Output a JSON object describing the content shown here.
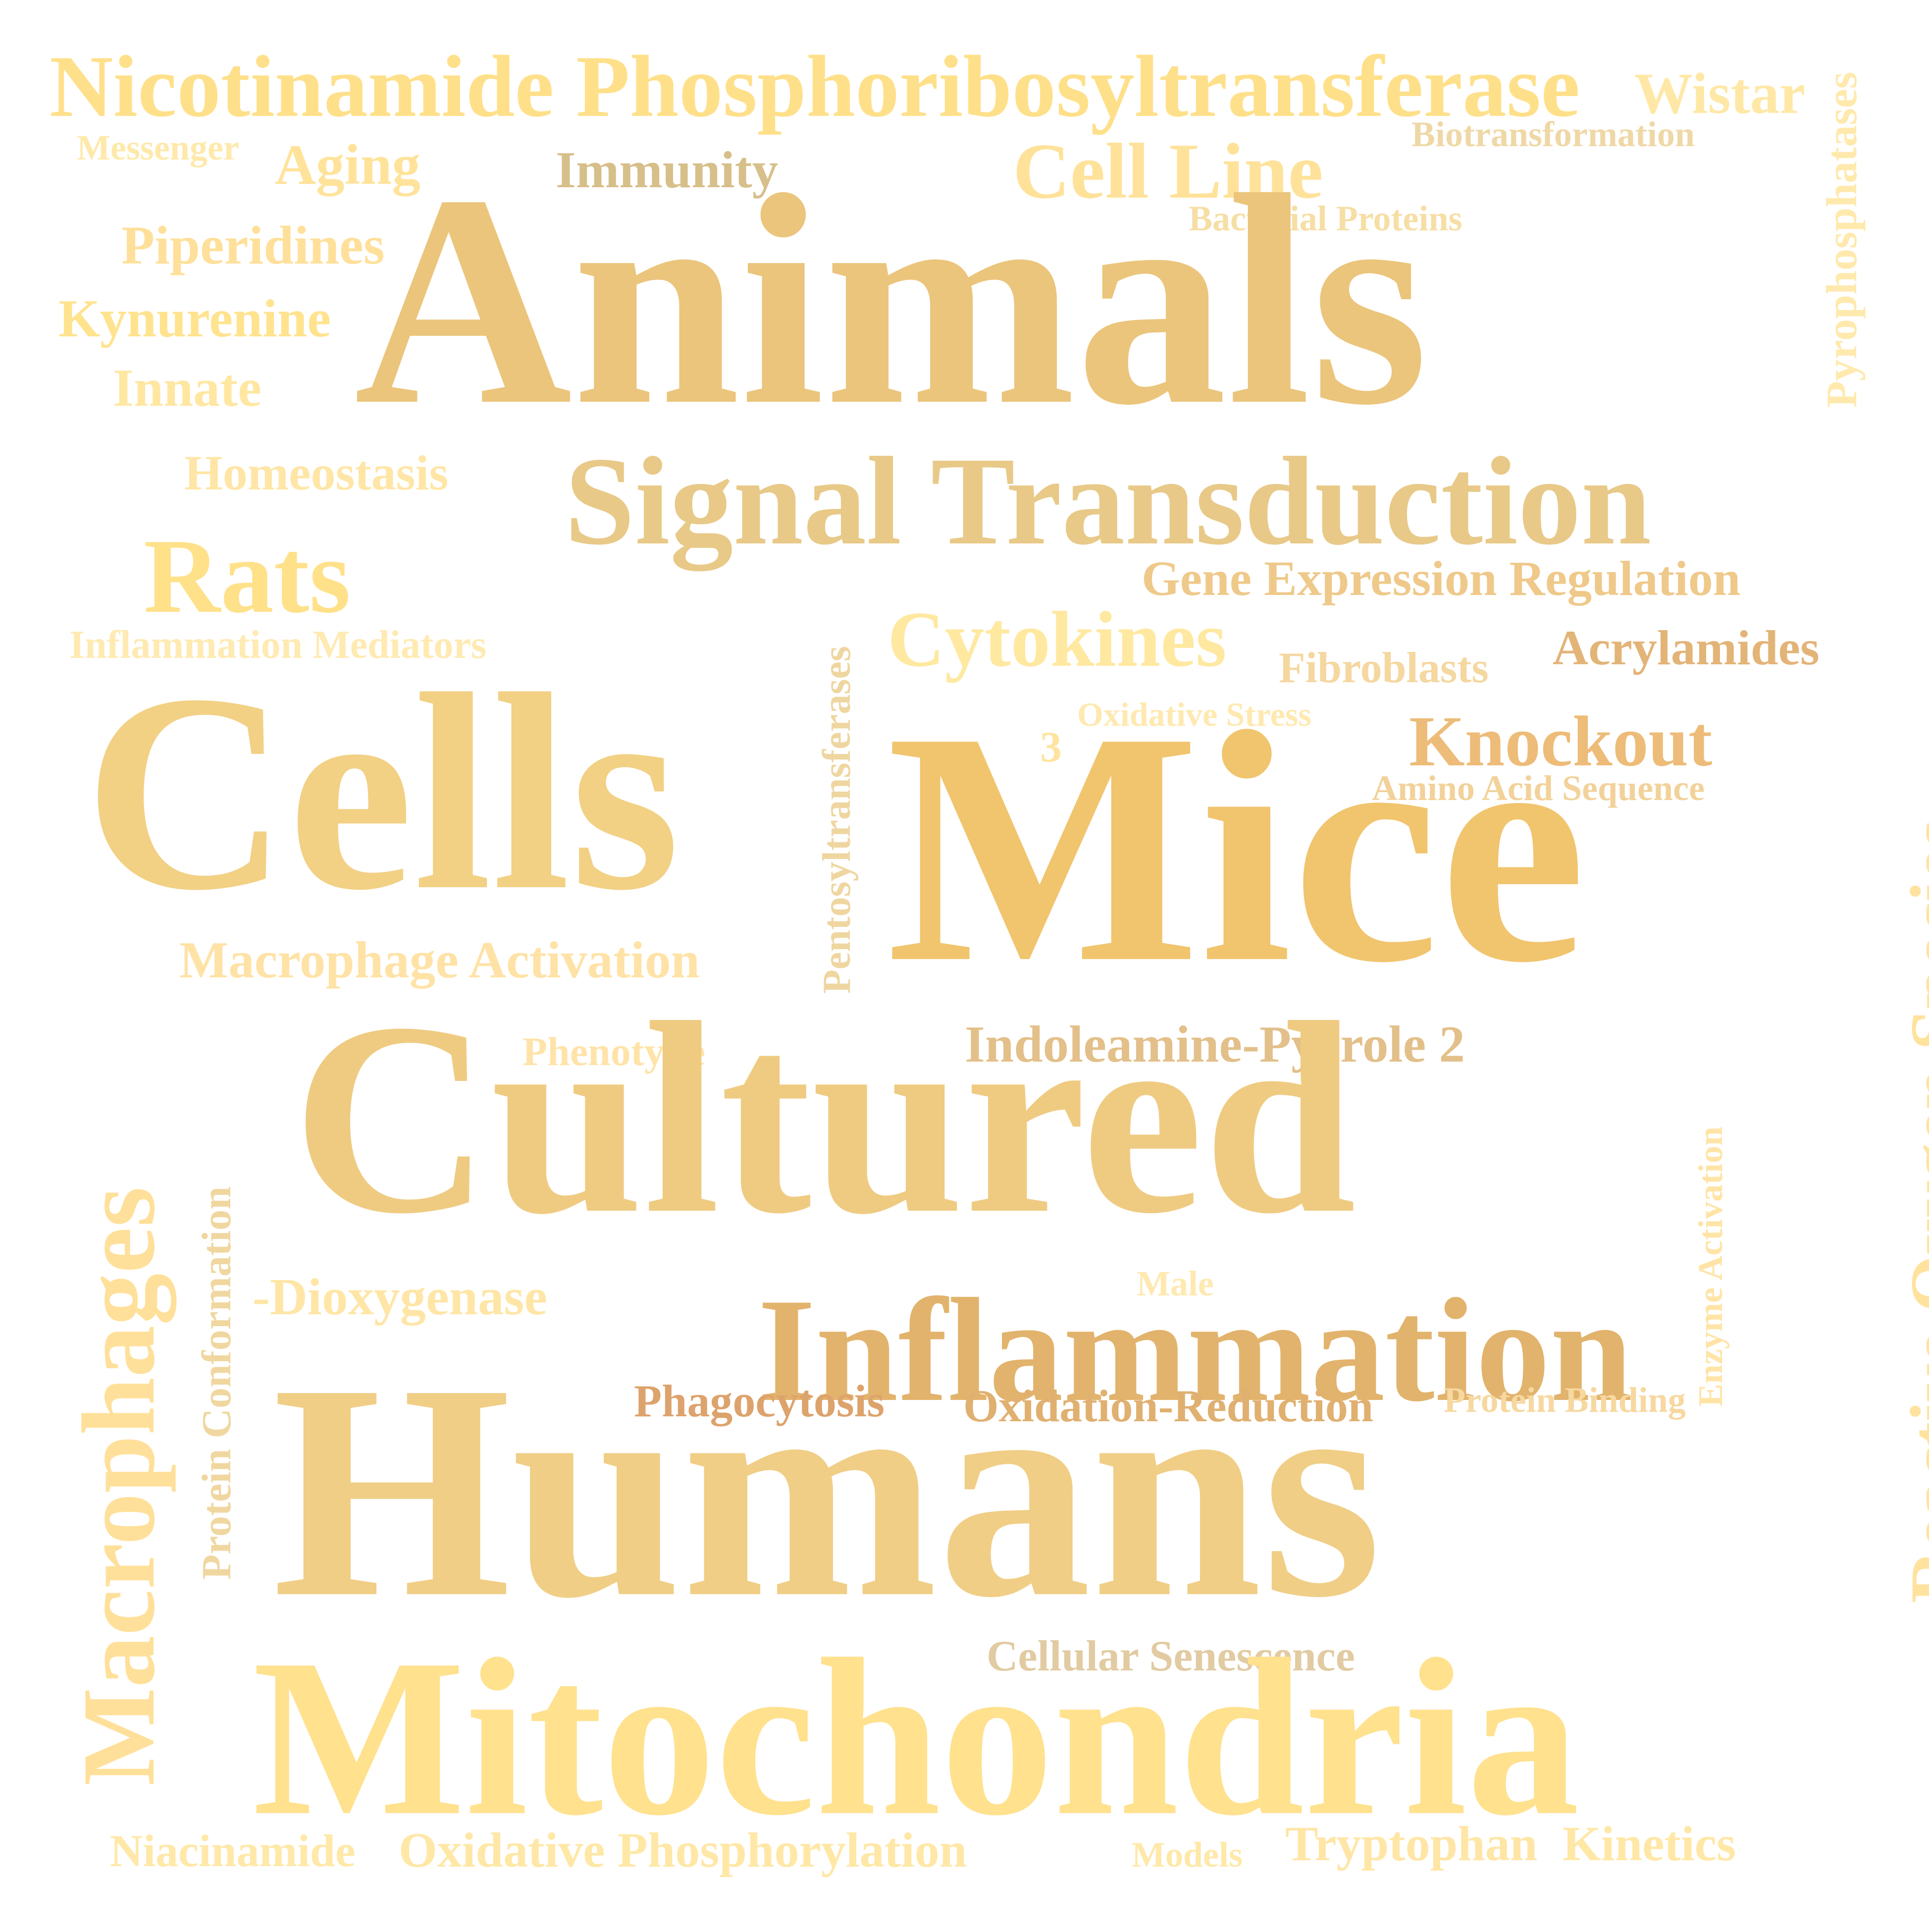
{
  "word_cloud": {
    "words": [
      {
        "key": "nicotinamide",
        "text": "Nicotinamide Phosphoribosyltransferase",
        "color": "#FFE08A"
      },
      {
        "key": "wistar",
        "text": "Wistar",
        "color": "#FFE8A6"
      },
      {
        "key": "pyrophosphatases",
        "text": "Pyrophosphatases",
        "color": "#FFE9AC"
      },
      {
        "key": "messenger",
        "text": "Messenger",
        "color": "#FFE9AA"
      },
      {
        "key": "aging",
        "text": "Aging",
        "color": "#FFE39A"
      },
      {
        "key": "immunity",
        "text": "Immunity",
        "color": "#D7BF8A"
      },
      {
        "key": "cell_line",
        "text": "Cell Line",
        "color": "#FFE29A"
      },
      {
        "key": "biotransformation",
        "text": "Biotransformation",
        "color": "#EFD8A6"
      },
      {
        "key": "bacterial_proteins",
        "text": "Bacterial Proteins",
        "color": "#F6DEA5"
      },
      {
        "key": "animals",
        "text": "Animals",
        "color": "#EBC57C"
      },
      {
        "key": "piperidines",
        "text": "Piperidines",
        "color": "#FFE09A"
      },
      {
        "key": "kynurenine",
        "text": "Kynurenine",
        "color": "#FFE38E"
      },
      {
        "key": "innate",
        "text": "Innate",
        "color": "#FFE7A2"
      },
      {
        "key": "homeostasis",
        "text": "Homeostasis",
        "color": "#FFE6A6"
      },
      {
        "key": "signal_transduction",
        "text": "Signal Transduction",
        "color": "#E8C988"
      },
      {
        "key": "rats",
        "text": "Rats",
        "color": "#FFE18A"
      },
      {
        "key": "gene_expression",
        "text": "Gene Expression Regulation",
        "color": "#EFC98A"
      },
      {
        "key": "inflammation_mediators",
        "text": "Inflammation Mediators",
        "color": "#FFEAB2"
      },
      {
        "key": "pentosyltransferases",
        "text": "Pentosyltransferases",
        "color": "#EFD6A0"
      },
      {
        "key": "cytokines",
        "text": "Cytokines",
        "color": "#FFE8A0"
      },
      {
        "key": "acrylamides",
        "text": "Acrylamides",
        "color": "#E3B478"
      },
      {
        "key": "fibroblasts",
        "text": "Fibroblasts",
        "color": "#F5D7A0"
      },
      {
        "key": "oxidative_stress",
        "text": "Oxidative Stress",
        "color": "#FFE9B0"
      },
      {
        "key": "knockout",
        "text": "Knockout",
        "color": "#EDBC78"
      },
      {
        "key": "three",
        "text": "3",
        "color": "#FFE4A0"
      },
      {
        "key": "amino_acid_sequence",
        "text": "Amino Acid Sequence",
        "color": "#F2D29A"
      },
      {
        "key": "cells",
        "text": "Cells",
        "color": "#F2D084"
      },
      {
        "key": "mice",
        "text": "Mice",
        "color": "#F1C46E"
      },
      {
        "key": "reactive_oxygen_species",
        "text": "Reactive Oxygen Species",
        "color": "#FFE29E"
      },
      {
        "key": "macrophage_activation",
        "text": "Macrophage Activation",
        "color": "#FFE2A6"
      },
      {
        "key": "macrophages",
        "text": "Macrophages",
        "color": "#FFE09A"
      },
      {
        "key": "phenotype",
        "text": "Phenotype",
        "color": "#FFE3A8"
      },
      {
        "key": "indoleamine",
        "text": "Indoleamine-Pyrrole 2",
        "color": "#E3C08A"
      },
      {
        "key": "cultured",
        "text": "Cultured",
        "color": "#EFCB82"
      },
      {
        "key": "protein_conformation",
        "text": "Protein Conformation",
        "color": "#F0D7A0"
      },
      {
        "key": "enzyme_activation",
        "text": "Enzyme Activation",
        "color": "#FFE4A6"
      },
      {
        "key": "dioxygenase",
        "text": "-Dioxygenase",
        "color": "#FFE6A6"
      },
      {
        "key": "male",
        "text": "Male",
        "color": "#FFE9B0"
      },
      {
        "key": "inflammation",
        "text": "Inflammation",
        "color": "#E2B36C"
      },
      {
        "key": "phagocytosis",
        "text": "Phagocytosis",
        "color": "#DDA36C"
      },
      {
        "key": "oxidation_reduction",
        "text": "Oxidation-Reduction",
        "color": "#E0B070"
      },
      {
        "key": "protein_binding",
        "text": "Protein Binding",
        "color": "#F6D8A0"
      },
      {
        "key": "humans",
        "text": "Humans",
        "color": "#F0CE86"
      },
      {
        "key": "cellular_senescence",
        "text": "Cellular Senescence",
        "color": "#E2CBA2"
      },
      {
        "key": "mitochondria",
        "text": "Mitochondria",
        "color": "#FFE18E"
      },
      {
        "key": "niacinamide",
        "text": "Niacinamide",
        "color": "#FFE8A8"
      },
      {
        "key": "oxidative_phosphorylation",
        "text": "Oxidative Phosphorylation",
        "color": "#FFE7A6"
      },
      {
        "key": "models",
        "text": "Models",
        "color": "#FFE8A8"
      },
      {
        "key": "tryptophan",
        "text": "Tryptophan",
        "color": "#FFE6A6"
      },
      {
        "key": "kinetics",
        "text": "Kinetics",
        "color": "#FFE7A6"
      }
    ]
  }
}
